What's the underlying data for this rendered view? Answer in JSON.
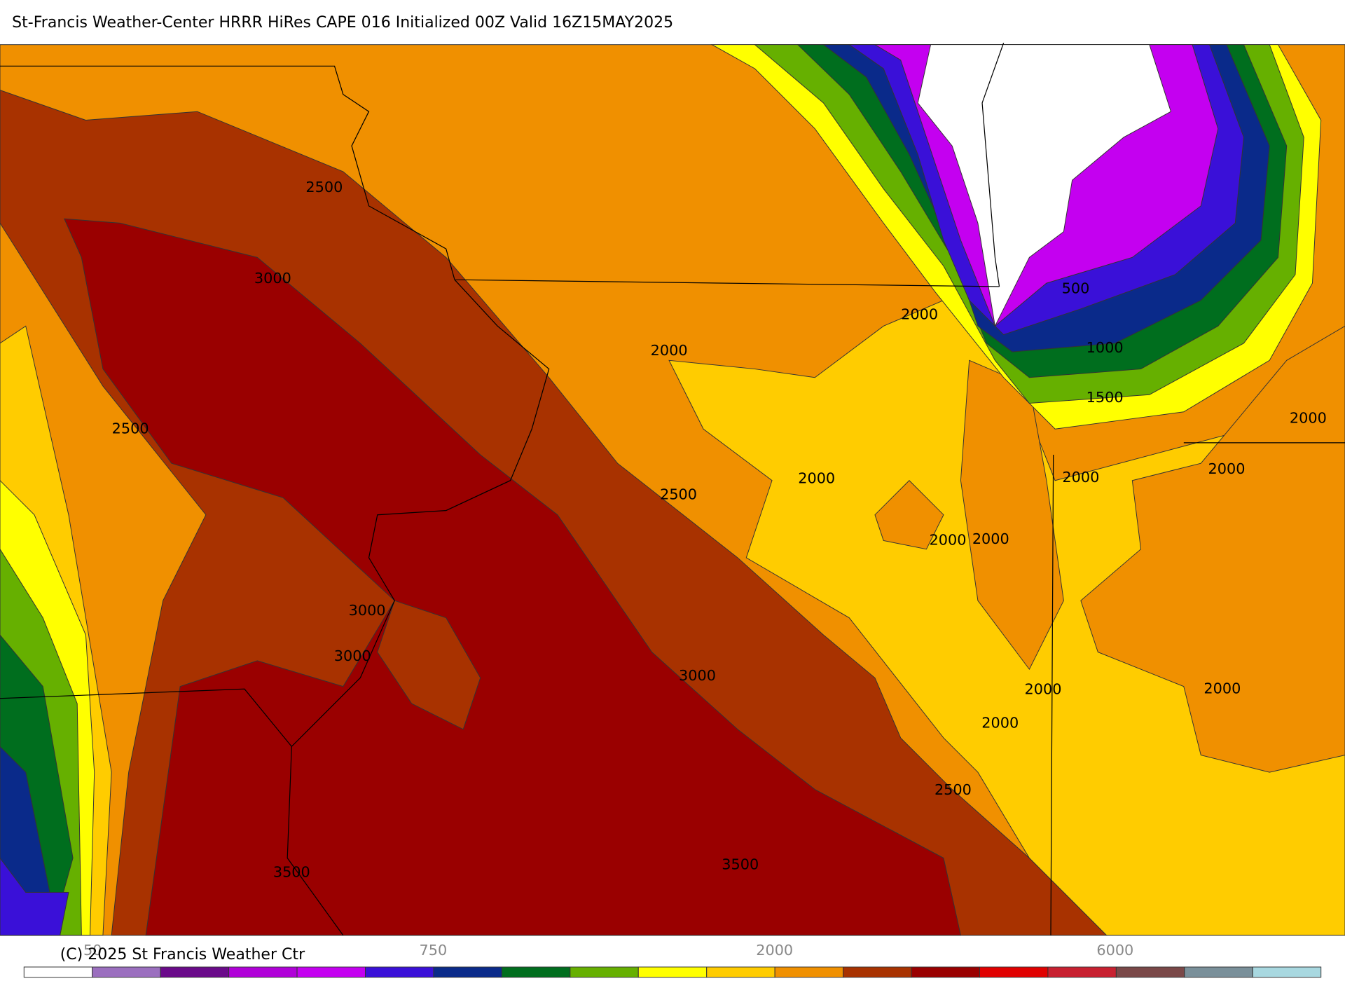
{
  "title": "St-Francis Weather-Center HRRR HiRes CAPE  016 Initialized  00Z Valid 16Z15MAY2025",
  "map": {
    "contour_labels": [
      "2500",
      "3000",
      "2500",
      "2000",
      "2000",
      "500",
      "1000",
      "1500",
      "2000",
      "2000",
      "2000",
      "2000",
      "2500",
      "2000",
      "2000",
      "3000",
      "3000",
      "3000",
      "2000",
      "2000",
      "2000",
      "2500",
      "3500",
      "3500"
    ]
  },
  "colorbar": {
    "colors": [
      "#ffffff",
      "#9b6fbf",
      "#6a0a8a",
      "#b000d8",
      "#c400f0",
      "#3a10d8",
      "#0a2a8a",
      "#006e1e",
      "#66b000",
      "#ffff00",
      "#ffcc00",
      "#f09000",
      "#a83200",
      "#9a0000",
      "#e00000",
      "#c82030",
      "#7a4848",
      "#7a909a",
      "#a8d8e0"
    ],
    "labels": [
      "50",
      "750",
      "2000",
      "6000"
    ]
  },
  "copyright": "(C) 2025 St Francis Weather Ctr"
}
